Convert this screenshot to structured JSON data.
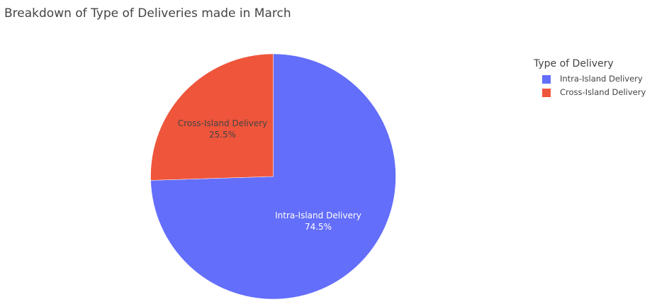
{
  "chart_data": {
    "type": "pie",
    "title": "Breakdown of Type of Deliveries made in March",
    "legend_title": "Type of Delivery",
    "legend_position": "right",
    "labels": [
      "Intra-Island Delivery",
      "Cross-Island Delivery"
    ],
    "values": [
      74.5,
      25.5
    ],
    "percent_labels": [
      "74.5%",
      "25.5%"
    ],
    "colors": [
      "#636efa",
      "#ef553b"
    ],
    "direction": "clockwise",
    "start": "top"
  }
}
